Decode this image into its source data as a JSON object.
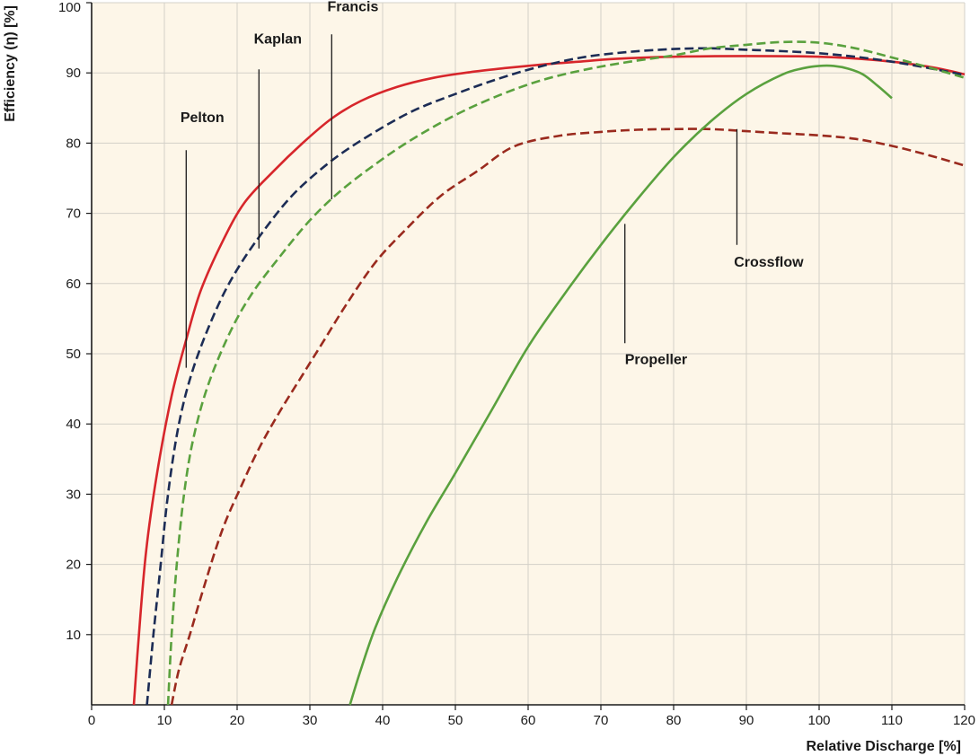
{
  "chart_data": {
    "type": "line",
    "title": "",
    "xlabel": "Relative Discharge [%]",
    "ylabel": "Efficiency (η) [%]",
    "xlim": [
      0,
      120
    ],
    "ylim": [
      0,
      100
    ],
    "x_ticks": [
      0,
      10,
      20,
      30,
      40,
      50,
      60,
      70,
      80,
      90,
      100,
      110,
      120
    ],
    "y_ticks": [
      10,
      20,
      30,
      40,
      50,
      60,
      70,
      80,
      90,
      100
    ],
    "grid": true,
    "legend": "none (curves labeled directly)",
    "background_color": "#fdf6e8",
    "grid_color": "#d3d0c8",
    "series": [
      {
        "name": "Pelton",
        "color": "#d7262b",
        "style": "solid",
        "points": [
          [
            5.8,
            0
          ],
          [
            6.5,
            10
          ],
          [
            7.5,
            22
          ],
          [
            9,
            33
          ],
          [
            11,
            44
          ],
          [
            13,
            52
          ],
          [
            15,
            59
          ],
          [
            18,
            66
          ],
          [
            21,
            71.5
          ],
          [
            25,
            76
          ],
          [
            29,
            80
          ],
          [
            33,
            83.5
          ],
          [
            37,
            86
          ],
          [
            42,
            88
          ],
          [
            47,
            89.3
          ],
          [
            52,
            90.1
          ],
          [
            57,
            90.7
          ],
          [
            62,
            91.2
          ],
          [
            67,
            91.6
          ],
          [
            72,
            92
          ],
          [
            80,
            92.3
          ],
          [
            90,
            92.4
          ],
          [
            100,
            92.3
          ],
          [
            108,
            91.8
          ],
          [
            115,
            90.9
          ],
          [
            120,
            89.8
          ]
        ]
      },
      {
        "name": "Kaplan",
        "color": "#1c2c55",
        "style": "dashed",
        "points": [
          [
            7.6,
            0
          ],
          [
            8.5,
            10
          ],
          [
            9.5,
            20
          ],
          [
            10.5,
            30
          ],
          [
            12,
            40
          ],
          [
            14,
            48
          ],
          [
            17,
            56
          ],
          [
            20,
            62
          ],
          [
            24,
            68
          ],
          [
            28,
            73
          ],
          [
            33,
            77.5
          ],
          [
            38,
            81
          ],
          [
            44,
            84.5
          ],
          [
            50,
            87
          ],
          [
            56,
            89.2
          ],
          [
            62,
            91
          ],
          [
            68,
            92.3
          ],
          [
            74,
            93
          ],
          [
            80,
            93.4
          ],
          [
            85,
            93.5
          ],
          [
            90,
            93.3
          ],
          [
            95,
            93.1
          ],
          [
            100,
            92.8
          ],
          [
            105,
            92.3
          ],
          [
            110,
            91.6
          ],
          [
            115,
            90.7
          ],
          [
            120,
            89.7
          ]
        ]
      },
      {
        "name": "Francis",
        "color": "#5aa13e",
        "style": "dashed",
        "points": [
          [
            10.5,
            0
          ],
          [
            11,
            10
          ],
          [
            11.7,
            20
          ],
          [
            12.7,
            30
          ],
          [
            14,
            38
          ],
          [
            16,
            45.5
          ],
          [
            19,
            53
          ],
          [
            22,
            58.5
          ],
          [
            26,
            64
          ],
          [
            30,
            69
          ],
          [
            34,
            73
          ],
          [
            39,
            77
          ],
          [
            44,
            80.5
          ],
          [
            50,
            84
          ],
          [
            56,
            86.8
          ],
          [
            62,
            89
          ],
          [
            68,
            90.5
          ],
          [
            74,
            91.6
          ],
          [
            80,
            92.5
          ],
          [
            85,
            93.5
          ],
          [
            90,
            94
          ],
          [
            95,
            94.4
          ],
          [
            100,
            94.3
          ],
          [
            105,
            93.5
          ],
          [
            110,
            92.2
          ],
          [
            115,
            90.8
          ],
          [
            120,
            89.3
          ]
        ]
      },
      {
        "name": "Crossflow",
        "color": "#9a2a1e",
        "style": "dashed",
        "points": [
          [
            11,
            0
          ],
          [
            12,
            5
          ],
          [
            13.5,
            10
          ],
          [
            15.5,
            17
          ],
          [
            18,
            25
          ],
          [
            20.5,
            31
          ],
          [
            23,
            36.5
          ],
          [
            26,
            42
          ],
          [
            29,
            47
          ],
          [
            32,
            52
          ],
          [
            35,
            57
          ],
          [
            39,
            63
          ],
          [
            43,
            67.5
          ],
          [
            48,
            72.5
          ],
          [
            53,
            76
          ],
          [
            58,
            79.5
          ],
          [
            64,
            81
          ],
          [
            70,
            81.6
          ],
          [
            75,
            81.9
          ],
          [
            80,
            82
          ],
          [
            85,
            82
          ],
          [
            90,
            81.7
          ],
          [
            95,
            81.4
          ],
          [
            100,
            81.1
          ],
          [
            105,
            80.6
          ],
          [
            110,
            79.6
          ],
          [
            115,
            78.3
          ],
          [
            120,
            76.8
          ]
        ]
      },
      {
        "name": "Propeller",
        "color": "#5aa13e",
        "style": "solid",
        "points": [
          [
            35.5,
            0
          ],
          [
            37,
            5
          ],
          [
            39,
            11
          ],
          [
            42,
            18
          ],
          [
            46,
            26
          ],
          [
            50,
            33
          ],
          [
            55,
            42
          ],
          [
            60,
            51
          ],
          [
            65,
            58.5
          ],
          [
            70,
            65.5
          ],
          [
            75,
            72
          ],
          [
            80,
            78
          ],
          [
            85,
            83
          ],
          [
            90,
            87
          ],
          [
            95,
            89.8
          ],
          [
            98,
            90.7
          ],
          [
            100,
            91
          ],
          [
            102,
            91
          ],
          [
            104,
            90.6
          ],
          [
            106,
            89.8
          ],
          [
            108,
            88.2
          ],
          [
            110,
            86.4
          ]
        ]
      }
    ],
    "annotations": [
      {
        "text": "Pelton",
        "label_x": 12.2,
        "label_y": 83,
        "pointer": [
          [
            13,
            79
          ],
          [
            13,
            48
          ]
        ]
      },
      {
        "text": "Kaplan",
        "label_x": 22.3,
        "label_y": 94.2,
        "pointer": [
          [
            23,
            90.5
          ],
          [
            23,
            65
          ]
        ]
      },
      {
        "text": "Francis",
        "label_x": 32.4,
        "label_y": 98.8,
        "pointer": [
          [
            33,
            95.5
          ],
          [
            33,
            72
          ]
        ]
      },
      {
        "text": "Crossflow",
        "label_x": 88.3,
        "label_y": 62.4,
        "pointer": [
          [
            88.7,
            82
          ],
          [
            88.7,
            65.5
          ]
        ]
      },
      {
        "text": "Propeller",
        "label_x": 73.3,
        "label_y": 48.5,
        "pointer": [
          [
            73.3,
            68.5
          ],
          [
            73.3,
            51.5
          ]
        ]
      }
    ]
  }
}
